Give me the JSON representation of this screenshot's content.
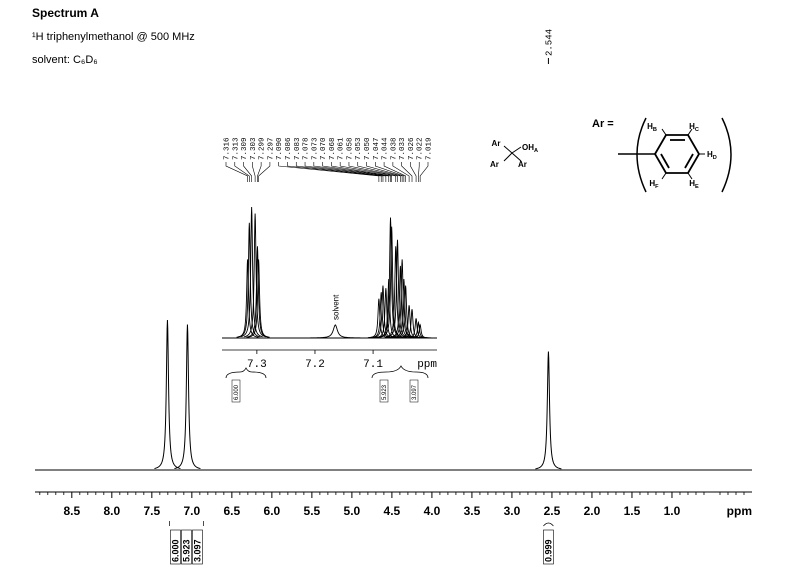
{
  "header": {
    "title": "Spectrum A",
    "nucleus": "¹H triphenylmethanol @ 500 MHz",
    "solvent": "solvent: C₆D₆"
  },
  "chart_data": {
    "type": "spectrum",
    "xlabel": "ppm",
    "xlim": [
      8.96,
      0.0
    ],
    "xticks": [
      8.5,
      {
        "value": 8,
        "label": "8.0"
      },
      7.5,
      {
        "value": 7,
        "label": "7.0"
      },
      6.5,
      {
        "value": 6,
        "label": "6.0"
      },
      5.5,
      {
        "value": 5,
        "label": "5.0"
      },
      4.5,
      {
        "value": 4,
        "label": "4.0"
      },
      3.5,
      {
        "value": 3,
        "label": "3.0"
      },
      2.5,
      {
        "value": 2,
        "label": "2.0"
      },
      1.5,
      {
        "value": 1,
        "label": "1.0"
      }
    ],
    "xminor": [
      0.1,
      0.2,
      0.3,
      0.4,
      0.6,
      0.7,
      0.8,
      0.9,
      1.1,
      1.2,
      1.3,
      1.4,
      1.6,
      1.7,
      1.8,
      1.9,
      2.1,
      2.2,
      2.3,
      2.4,
      2.6,
      2.7,
      2.8,
      2.9,
      3.1,
      3.2,
      3.3,
      3.4,
      3.6,
      3.7,
      3.8,
      3.9,
      4.1,
      4.2,
      4.3,
      4.4,
      4.6,
      4.7,
      4.8,
      4.9,
      5.1,
      5.2,
      5.3,
      5.4,
      5.6,
      5.7,
      5.8,
      5.9,
      6.1,
      6.2,
      6.3,
      6.4,
      6.6,
      6.7,
      6.8,
      6.9,
      7.1,
      7.2,
      7.3,
      7.4,
      7.6,
      7.7,
      7.8,
      7.9,
      8.1,
      8.2,
      8.3,
      8.4,
      8.6,
      8.7,
      8.8,
      8.9
    ],
    "x": [
      7.305,
      7.055,
      2.544
    ],
    "values": [
      100,
      97,
      79
    ],
    "color": "#000000",
    "integrals": [
      {
        "value": 6,
        "label": "6.000"
      },
      {
        "value": 5.923,
        "label": "5.923"
      },
      {
        "value": 3.097,
        "label": "3.097"
      },
      {
        "value": 0.999,
        "label": "0.999"
      }
    ],
    "inset": {
      "xlim": [
        7.36,
        6.99
      ],
      "xticks": [
        7.3,
        7.2,
        7.1
      ],
      "xlabel": "ppm",
      "peaks": [
        7.316,
        7.313,
        7.309,
        7.303,
        7.299,
        7.297,
        {
          "value": 7.09,
          "label": "7.090"
        },
        7.086,
        7.083,
        7.078,
        7.073,
        {
          "value": 7.07,
          "label": "7.070"
        },
        7.068,
        7.061,
        7.058,
        7.053,
        {
          "value": 7.05,
          "label": "7.050"
        },
        7.047,
        7.044,
        7.038,
        7.033,
        7.026,
        7.022,
        7.019
      ],
      "values": [
        60,
        88,
        100,
        95,
        70,
        60,
        30,
        35,
        40,
        38,
        45,
        92,
        85,
        70,
        75,
        55,
        60,
        45,
        40,
        25,
        22,
        15,
        12,
        10
      ],
      "solvent_x": 7.165,
      "solvent_value": 10,
      "annotation": "solvent",
      "integrals": [
        {
          "value": 6,
          "label": "6.000"
        },
        {
          "value": 5.923,
          "label": "5.923"
        },
        {
          "value": 3.097,
          "label": "3.097"
        }
      ]
    }
  },
  "structure": {
    "central": [
      {
        "text": "Ar"
      },
      {
        "text": "OH",
        "sub": "A"
      },
      {
        "text": "Ar"
      },
      {
        "text": "Ar"
      }
    ],
    "ar_label": "Ar =",
    "ring": [
      {
        "text": "H",
        "sub": "B"
      },
      {
        "text": "H",
        "sub": "C"
      },
      {
        "text": "H",
        "sub": "D"
      },
      {
        "text": "H",
        "sub": "F"
      },
      {
        "text": "H",
        "sub": "E"
      }
    ]
  }
}
